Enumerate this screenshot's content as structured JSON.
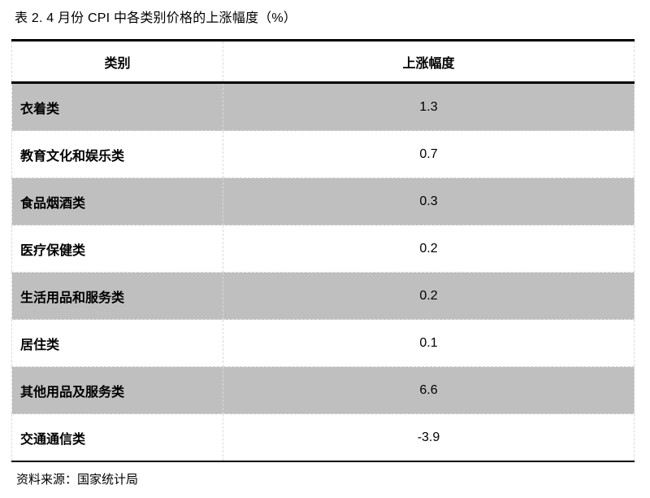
{
  "title": "表 2. 4 月份 CPI 中各类别价格的上涨幅度（%）",
  "table": {
    "headers": [
      "类别",
      "上涨幅度"
    ],
    "rows": [
      {
        "category": "衣着类",
        "value": "1.3"
      },
      {
        "category": "教育文化和娱乐类",
        "value": "0.7"
      },
      {
        "category": "食品烟酒类",
        "value": "0.3"
      },
      {
        "category": "医疗保健类",
        "value": "0.2"
      },
      {
        "category": "生活用品和服务类",
        "value": "0.2"
      },
      {
        "category": "居住类",
        "value": "0.1"
      },
      {
        "category": "其他用品及服务类",
        "value": "6.6"
      },
      {
        "category": "交通通信类",
        "value": "-3.9"
      }
    ]
  },
  "source": "资料来源：国家统计局",
  "colors": {
    "row_shaded": "#bfbfbf",
    "border_strong": "#000000",
    "border_light": "#d9d9d9",
    "text": "#000000",
    "background": "#ffffff"
  },
  "chart_data": {
    "type": "table",
    "title": "表 2. 4 月份 CPI 中各类别价格的上涨幅度（%）",
    "columns": [
      "类别",
      "上涨幅度"
    ],
    "categories": [
      "衣着类",
      "教育文化和娱乐类",
      "食品烟酒类",
      "医疗保健类",
      "生活用品和服务类",
      "居住类",
      "其他用品及服务类",
      "交通通信类"
    ],
    "values": [
      1.3,
      0.7,
      0.3,
      0.2,
      0.2,
      0.1,
      6.6,
      -3.9
    ],
    "source": "资料来源：国家统计局",
    "layout": {
      "shading": "alternate-rows-gray-starting-first",
      "category_align": "left",
      "value_align": "center"
    }
  }
}
